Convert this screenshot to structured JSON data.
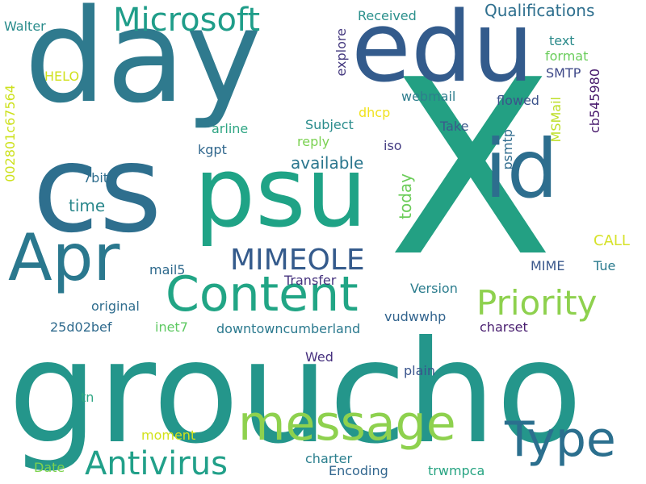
{
  "title": "",
  "words": [
    {
      "text": "groucho",
      "size": 175,
      "color": "#24968b"
    },
    {
      "text": "day",
      "size": 160,
      "color": "#2f7a8e"
    },
    {
      "text": "X",
      "size": 300,
      "color": "#23a083"
    },
    {
      "text": "edu",
      "size": 120,
      "color": "#335b8c"
    },
    {
      "text": "cs",
      "size": 150,
      "color": "#2e6f8e"
    },
    {
      "text": "psu",
      "size": 120,
      "color": "#1fa386"
    },
    {
      "text": "id",
      "size": 100,
      "color": "#2d6e8e"
    },
    {
      "text": "Apr",
      "size": 80,
      "color": "#2a788e"
    },
    {
      "text": "Content",
      "size": 60,
      "color": "#21a585"
    },
    {
      "text": "message",
      "size": 60,
      "color": "#8ed14e"
    },
    {
      "text": "Type",
      "size": 60,
      "color": "#2b6f8e"
    },
    {
      "text": "Microsoft",
      "size": 40,
      "color": "#1f9d89"
    },
    {
      "text": "Priority",
      "size": 42,
      "color": "#8ed14e"
    },
    {
      "text": "Antivirus",
      "size": 40,
      "color": "#21a089"
    },
    {
      "text": "MIMEOLE",
      "size": 36,
      "color": "#355b8c"
    },
    {
      "text": "Qualifications",
      "size": 20,
      "color": "#2e6f8e"
    },
    {
      "text": "available",
      "size": 20,
      "color": "#2a768e"
    },
    {
      "text": "time",
      "size": 20,
      "color": "#2b888c"
    },
    {
      "text": "CALL",
      "size": 18,
      "color": "#d6e229"
    },
    {
      "text": "today",
      "size": 20,
      "color": "#6ccd5a"
    },
    {
      "text": "Received",
      "size": 16,
      "color": "#2b908c"
    },
    {
      "text": "Walter",
      "size": 16,
      "color": "#2a8c8c"
    },
    {
      "text": "text",
      "size": 16,
      "color": "#2a8a8a"
    },
    {
      "text": "format",
      "size": 16,
      "color": "#6acd5b"
    },
    {
      "text": "SMTP",
      "size": 16,
      "color": "#3f4a89"
    },
    {
      "text": "HELO",
      "size": 16,
      "color": "#d0e11c"
    },
    {
      "text": "webmail",
      "size": 16,
      "color": "#2f7e8e"
    },
    {
      "text": "flowed",
      "size": 16,
      "color": "#3b528b"
    },
    {
      "text": "dhcp",
      "size": 16,
      "color": "#f0e21f"
    },
    {
      "text": "arline",
      "size": 16,
      "color": "#2ea583"
    },
    {
      "text": "Subject",
      "size": 16,
      "color": "#2a8c8c"
    },
    {
      "text": "Take",
      "size": 16,
      "color": "#3b5a8c"
    },
    {
      "text": "reply",
      "size": 16,
      "color": "#7ad151"
    },
    {
      "text": "iso",
      "size": 16,
      "color": "#433b82"
    },
    {
      "text": "kgpt",
      "size": 16,
      "color": "#30678d"
    },
    {
      "text": "7bit",
      "size": 16,
      "color": "#2f6e8e"
    },
    {
      "text": "mail5",
      "size": 16,
      "color": "#2f6a8d"
    },
    {
      "text": "Transfer",
      "size": 16,
      "color": "#46337e"
    },
    {
      "text": "MIME",
      "size": 16,
      "color": "#3a588c"
    },
    {
      "text": "Tue",
      "size": 16,
      "color": "#2b7b8e"
    },
    {
      "text": "Version",
      "size": 16,
      "color": "#2c7d8e"
    },
    {
      "text": "original",
      "size": 16,
      "color": "#2f6d8e"
    },
    {
      "text": "25d02bef",
      "size": 16,
      "color": "#2f6a8d"
    },
    {
      "text": "inet7",
      "size": 16,
      "color": "#5ec962"
    },
    {
      "text": "downtowncumberland",
      "size": 16,
      "color": "#2a798e"
    },
    {
      "text": "vudwwhp",
      "size": 16,
      "color": "#31638d"
    },
    {
      "text": "charset",
      "size": 16,
      "color": "#481d6f"
    },
    {
      "text": "Wed",
      "size": 16,
      "color": "#46307e"
    },
    {
      "text": "plain",
      "size": 16,
      "color": "#3a548c"
    },
    {
      "text": "tn",
      "size": 16,
      "color": "#2ea683"
    },
    {
      "text": "moment",
      "size": 16,
      "color": "#d2e21b"
    },
    {
      "text": "charter",
      "size": 16,
      "color": "#2b7f8e"
    },
    {
      "text": "Date",
      "size": 16,
      "color": "#7ed34e"
    },
    {
      "text": "Encoding",
      "size": 16,
      "color": "#31668e"
    },
    {
      "text": "trwmpca",
      "size": 16,
      "color": "#27a482"
    },
    {
      "text": "explore",
      "size": 16,
      "color": "#44397f"
    },
    {
      "text": "psmtp",
      "size": 16,
      "color": "#2f6b8e"
    },
    {
      "text": "MSMail",
      "size": 16,
      "color": "#bddf26"
    },
    {
      "text": "cb545980",
      "size": 16,
      "color": "#481a6c"
    },
    {
      "text": "002801c67564",
      "size": 16,
      "color": "#cde11d"
    }
  ]
}
